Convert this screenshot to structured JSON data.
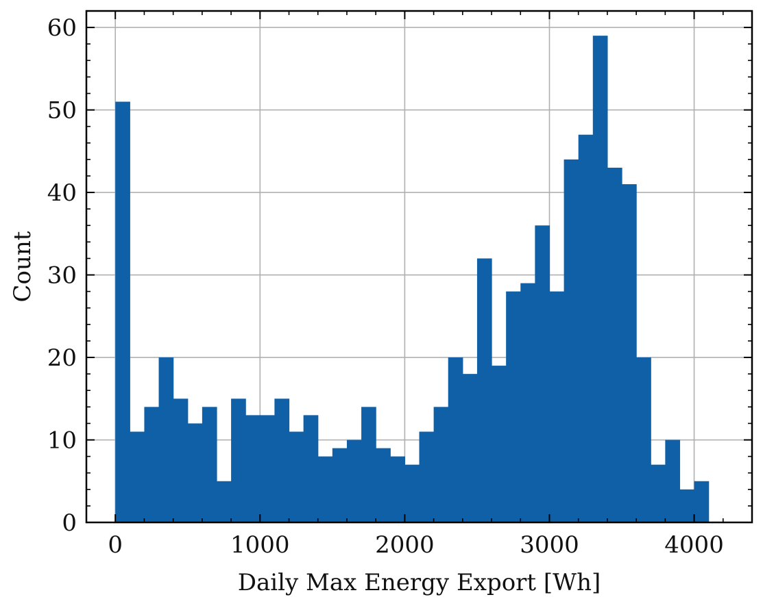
{
  "chart_data": {
    "type": "bar",
    "xlabel": "Daily Max Energy Export [Wh]",
    "ylabel": "Count",
    "xlim": [
      -200,
      4400
    ],
    "ylim": [
      0,
      62
    ],
    "xticks": [
      0,
      1000,
      2000,
      3000,
      4000
    ],
    "xtick_labels": [
      "0",
      "1000",
      "2000",
      "3000",
      "4000"
    ],
    "yticks": [
      0,
      10,
      20,
      30,
      40,
      50,
      60
    ],
    "ytick_labels": [
      "0",
      "10",
      "20",
      "30",
      "40",
      "50",
      "60"
    ],
    "grid": true,
    "bar_color": "#1060a8",
    "bin_start": 0,
    "bin_width": 100,
    "values": [
      51,
      11,
      14,
      20,
      15,
      12,
      14,
      5,
      15,
      13,
      13,
      15,
      11,
      13,
      8,
      9,
      10,
      14,
      9,
      8,
      7,
      11,
      14,
      20,
      18,
      32,
      19,
      28,
      29,
      36,
      28,
      44,
      47,
      59,
      43,
      41,
      20,
      7,
      10,
      4,
      5
    ]
  }
}
